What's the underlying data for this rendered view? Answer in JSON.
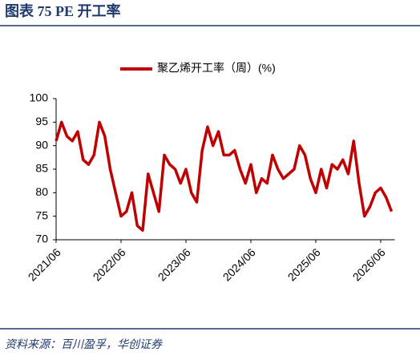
{
  "header": {
    "title": "图表 75 PE 开工率"
  },
  "source": "资料来源：百川盈孚，华创证券",
  "chart_data": {
    "type": "line",
    "x": [
      "2021/06",
      "2021/07",
      "2021/08",
      "2021/09",
      "2021/10",
      "2021/11",
      "2021/12",
      "2022/01",
      "2022/02",
      "2022/03",
      "2022/04",
      "2022/05",
      "2022/06",
      "2022/07",
      "2022/08",
      "2022/09",
      "2022/10",
      "2022/11",
      "2022/12",
      "2023/01",
      "2023/02",
      "2023/03",
      "2023/04",
      "2023/05",
      "2023/06",
      "2023/07",
      "2023/08",
      "2023/09",
      "2023/10",
      "2023/11",
      "2023/12",
      "2024/01",
      "2024/02",
      "2024/03",
      "2024/04",
      "2024/05",
      "2024/06",
      "2024/07",
      "2024/08",
      "2024/09",
      "2024/10",
      "2024/11",
      "2024/12",
      "2025/01",
      "2025/02",
      "2025/03",
      "2025/04",
      "2025/05",
      "2025/06",
      "2025/07",
      "2025/08",
      "2025/09",
      "2025/10",
      "2025/11",
      "2025/12",
      "2026/01",
      "2026/02",
      "2026/03",
      "2026/04",
      "2026/05",
      "2026/06",
      "2026/07",
      "2026/08"
    ],
    "series": [
      {
        "name": "聚乙烯开工率（周）(%)",
        "color": "#c00000",
        "values": [
          91,
          95,
          92,
          91,
          93,
          87,
          86,
          88,
          95,
          92,
          85,
          80,
          75,
          76,
          80,
          73,
          72,
          84,
          80,
          76,
          88,
          86,
          85,
          82,
          85,
          80,
          78,
          89,
          94,
          90,
          93,
          88,
          88,
          89,
          85,
          82,
          86,
          80,
          83,
          82,
          88,
          85,
          83,
          84,
          85,
          90,
          88,
          83,
          80,
          85,
          81,
          86,
          85,
          87,
          84,
          91,
          82,
          75,
          77,
          80,
          81,
          79,
          76
        ]
      }
    ],
    "ylim": [
      70,
      100
    ],
    "yticks": [
      70,
      75,
      80,
      85,
      90,
      95,
      100
    ],
    "xticks": [
      "2021/06",
      "2022/06",
      "2023/06",
      "2024/06",
      "2025/06",
      "2026/06"
    ],
    "grid": false
  }
}
